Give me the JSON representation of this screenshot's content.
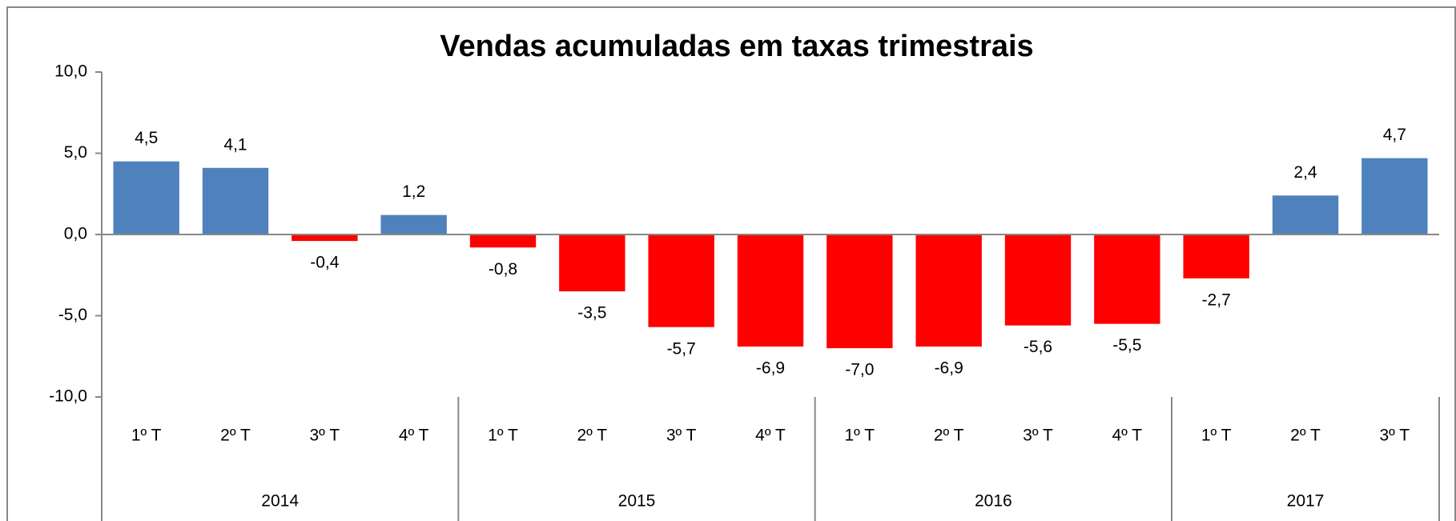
{
  "chart_data": {
    "type": "bar",
    "title": "Vendas acumuladas em taxas trimestrais",
    "categories": [
      "1º T",
      "2º T",
      "3º T",
      "4º T",
      "1º T",
      "2º T",
      "3º T",
      "4º T",
      "1º T",
      "2º T",
      "3º T",
      "4º T",
      "1º T",
      "2º T",
      "3º T"
    ],
    "groups": [
      {
        "label": "2014",
        "count": 4
      },
      {
        "label": "2015",
        "count": 4
      },
      {
        "label": "2016",
        "count": 4
      },
      {
        "label": "2017",
        "count": 3
      }
    ],
    "values": [
      4.5,
      4.1,
      -0.4,
      1.2,
      -0.8,
      -3.5,
      -5.7,
      -6.9,
      -7.0,
      -6.9,
      -5.6,
      -5.5,
      -2.7,
      2.4,
      4.7
    ],
    "value_labels": [
      "4,5",
      "4,1",
      "-0,4",
      "1,2",
      "-0,8",
      "-3,5",
      "-5,7",
      "-6,9",
      "-7,0",
      "-6,9",
      "-5,6",
      "-5,5",
      "-2,7",
      "2,4",
      "4,7"
    ],
    "positive_color": "#4f81bd",
    "negative_color": "#ff0000",
    "ylim": [
      -10,
      10
    ],
    "yticks": [
      {
        "value": -10,
        "label": "-10,0"
      },
      {
        "value": -5,
        "label": "-5,0"
      },
      {
        "value": 0,
        "label": "0,0"
      },
      {
        "value": 5,
        "label": "5,0"
      },
      {
        "value": 10,
        "label": "10,0"
      }
    ],
    "grid": false
  }
}
